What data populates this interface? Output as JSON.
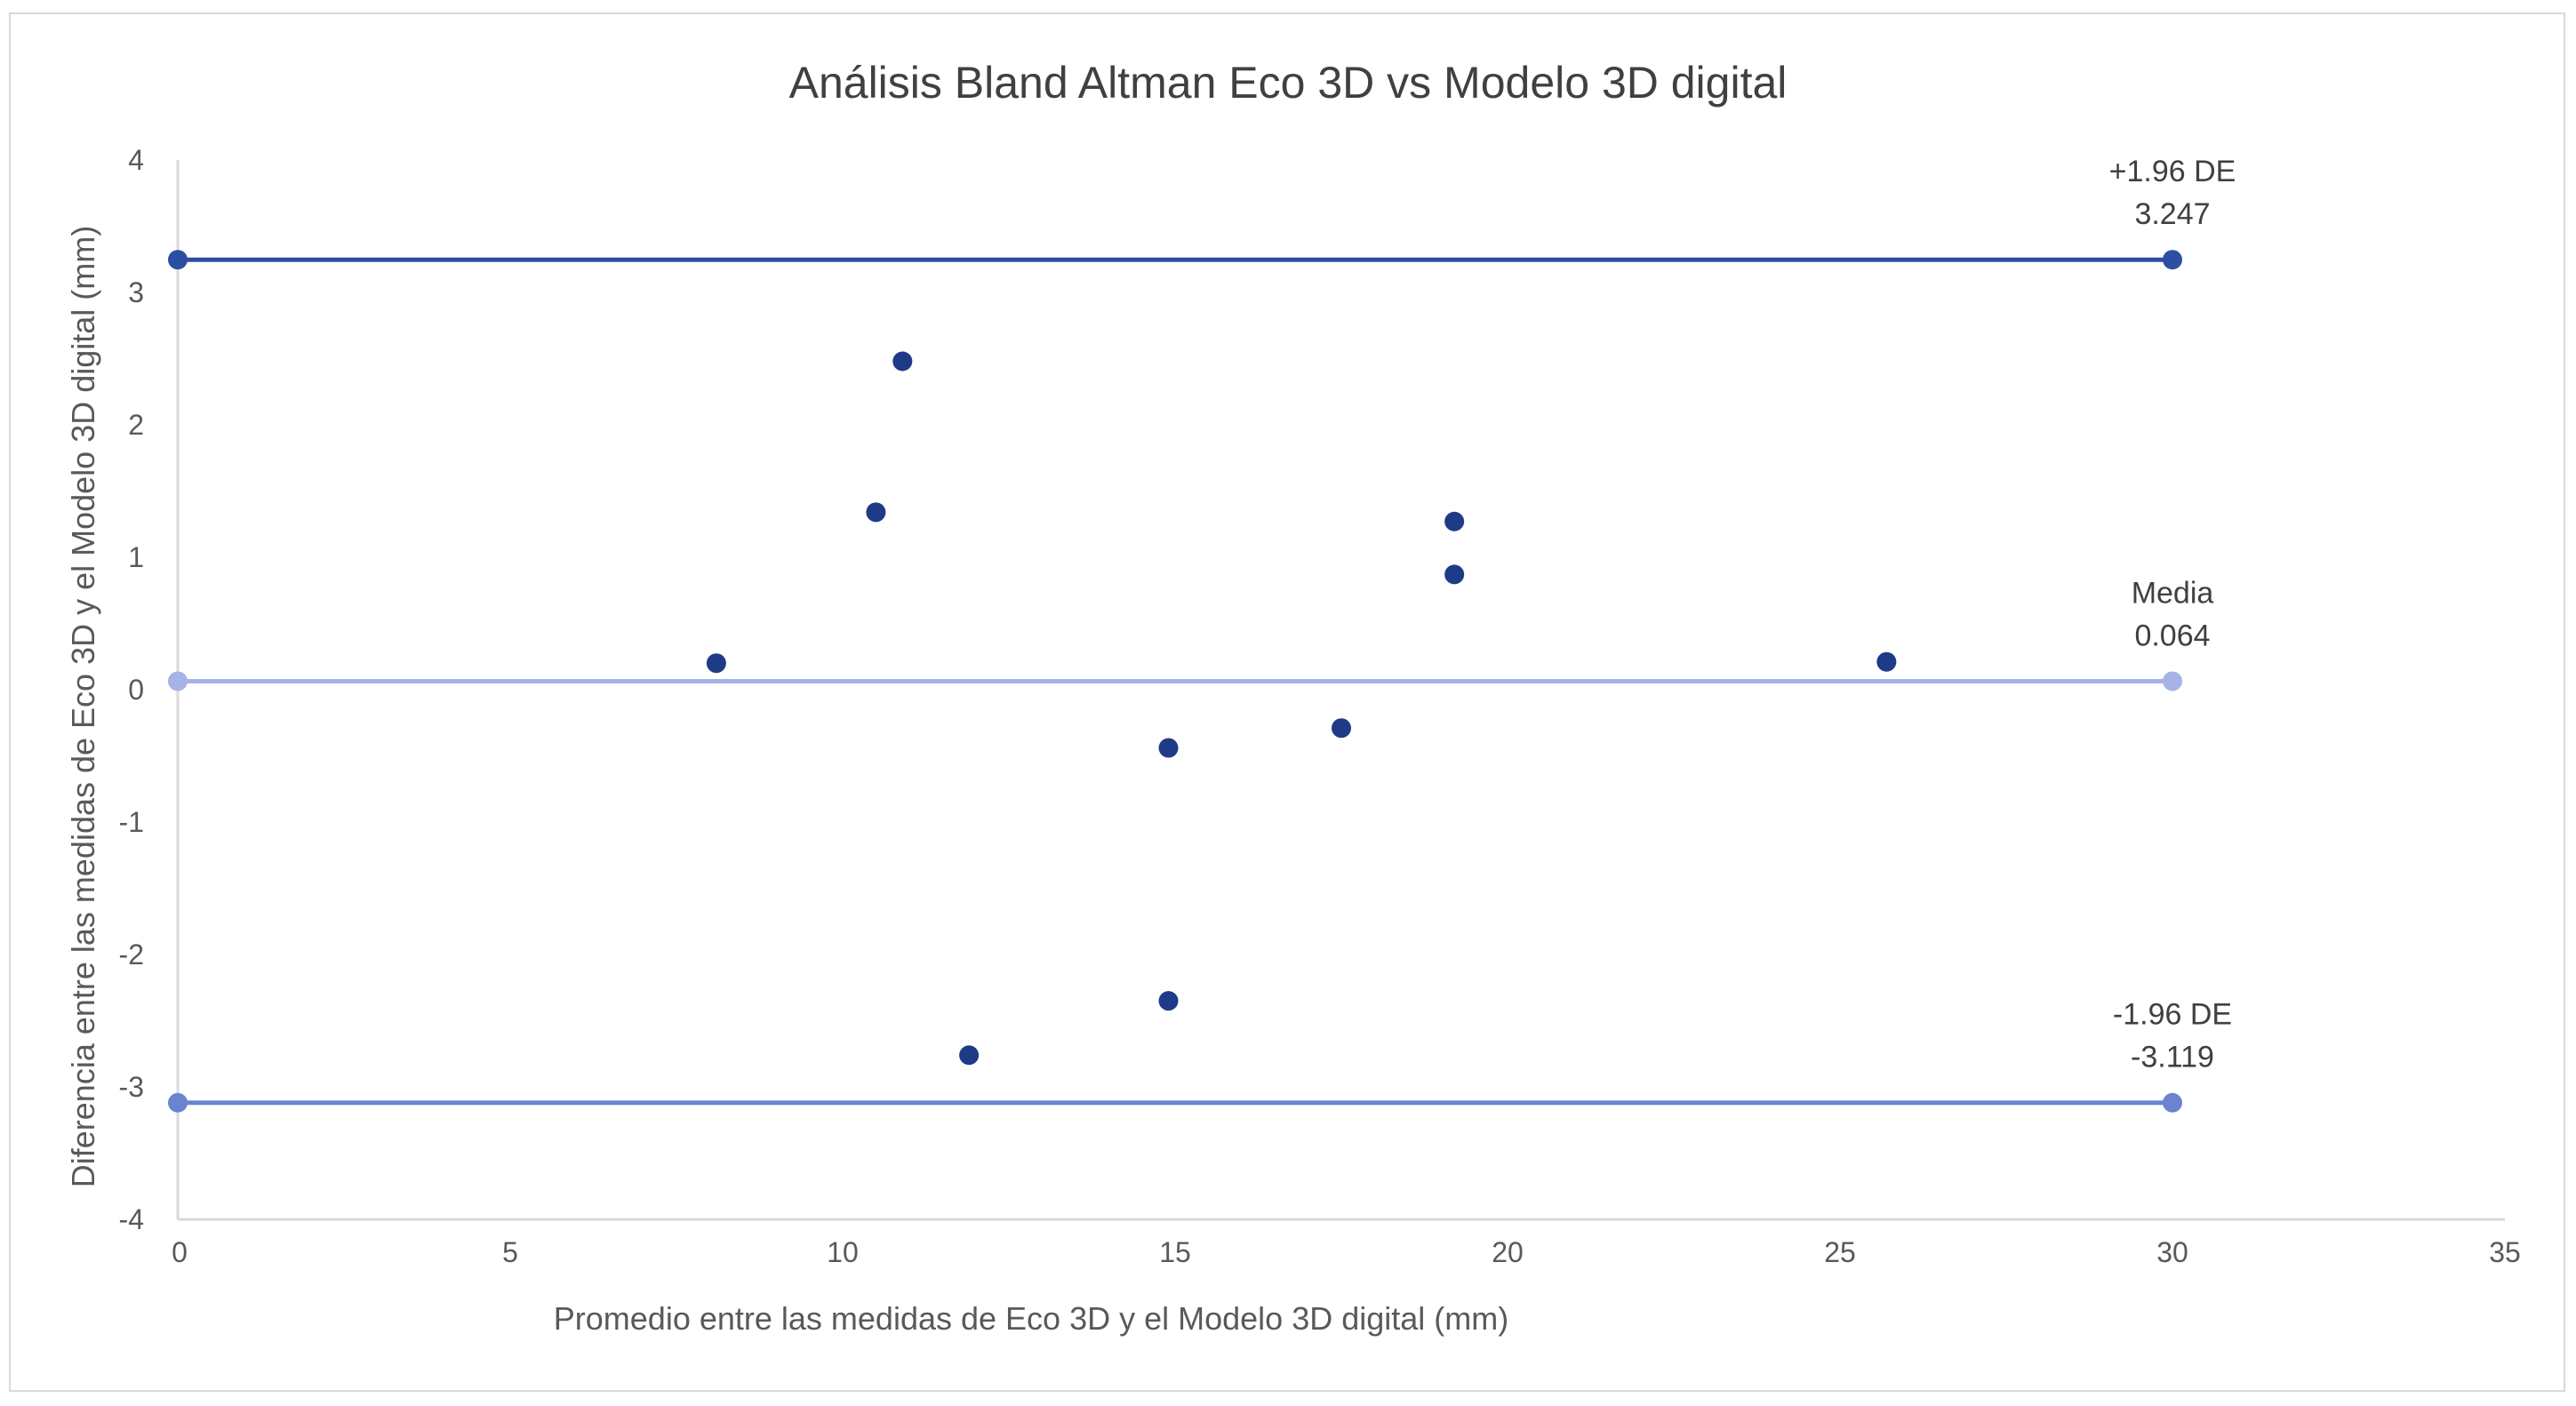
{
  "chart_data": {
    "type": "scatter",
    "title": "Análisis Bland Altman Eco 3D vs Modelo 3D digital",
    "xlabel": "Promedio entre  las medidas de Eco 3D y el Modelo 3D digital (mm)",
    "ylabel": "Diferencia entre las medidas de Eco 3D y el Modelo 3D digital (mm)",
    "xlim": [
      0,
      35
    ],
    "ylim": [
      -4,
      4
    ],
    "x_ticks": [
      "0",
      "5",
      "10",
      "15",
      "20",
      "25",
      "30",
      "35"
    ],
    "y_ticks": [
      "-4",
      "-3",
      "-2",
      "-1",
      "0",
      "1",
      "2",
      "3",
      "4"
    ],
    "grid": false,
    "points": [
      {
        "x": 8.1,
        "y": 0.2
      },
      {
        "x": 10.5,
        "y": 1.34
      },
      {
        "x": 10.9,
        "y": 2.48
      },
      {
        "x": 11.9,
        "y": -2.76
      },
      {
        "x": 14.9,
        "y": -0.44
      },
      {
        "x": 14.9,
        "y": -2.35
      },
      {
        "x": 17.5,
        "y": -0.29
      },
      {
        "x": 19.2,
        "y": 1.27
      },
      {
        "x": 19.2,
        "y": 0.87
      },
      {
        "x": 25.7,
        "y": 0.21
      }
    ],
    "point_color": "#1f3a86",
    "reference_lines": [
      {
        "label": "+1.96 DE",
        "value_label": "3.247",
        "y": 3.247,
        "x_range": [
          0,
          30
        ],
        "color": "#2c4fa3"
      },
      {
        "label": "Media",
        "value_label": "0.064",
        "y": 0.064,
        "x_range": [
          0,
          30
        ],
        "color": "#a6b3e6"
      },
      {
        "label": "-1.96 DE",
        "value_label": "-3.119",
        "y": -3.119,
        "x_range": [
          0,
          30
        ],
        "color": "#6a84d0"
      }
    ]
  }
}
